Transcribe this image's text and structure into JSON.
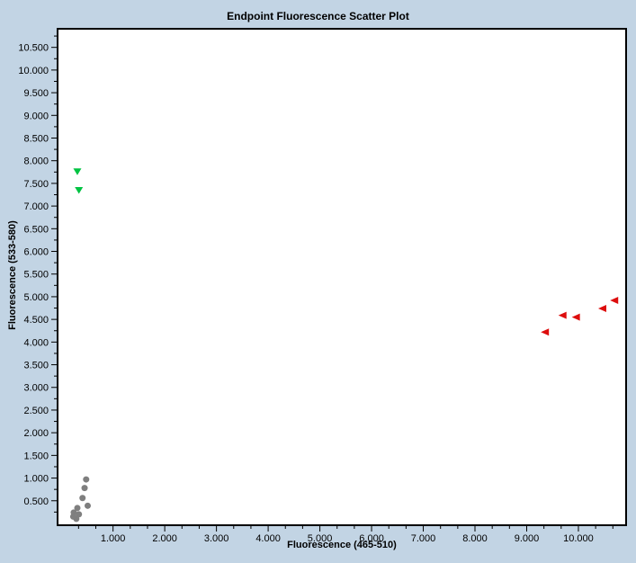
{
  "chart_data": {
    "type": "scatter",
    "title": "Endpoint Fluorescence Scatter Plot",
    "xlabel": "Fluorescence (465-510)",
    "ylabel": "Fluorescence (533-580)",
    "xlim": [
      -0.09,
      10.94
    ],
    "ylim": [
      -0.06,
      10.93
    ],
    "grid": false,
    "legend": "none",
    "background_color": "#c2d4e4",
    "plot_background_color": "#ffffff",
    "border_color": "#000000",
    "x_axis": {
      "minor_divisions": 3,
      "ticks": [
        {
          "value": 1,
          "text": "1.000"
        },
        {
          "value": 2,
          "text": "2.000"
        },
        {
          "value": 3,
          "text": "3.000"
        },
        {
          "value": 4,
          "text": "4.000"
        },
        {
          "value": 5,
          "text": "5.000"
        },
        {
          "value": 6,
          "text": "6.000"
        },
        {
          "value": 7,
          "text": "7.000"
        },
        {
          "value": 8,
          "text": "8.000"
        },
        {
          "value": 9,
          "text": "9.000"
        },
        {
          "value": 10,
          "text": "10.000"
        }
      ]
    },
    "y_axis": {
      "minor_divisions": 2,
      "ticks": [
        {
          "value": 0.5,
          "text": "0.500"
        },
        {
          "value": 1.0,
          "text": "1.000"
        },
        {
          "value": 1.5,
          "text": "1.500"
        },
        {
          "value": 2.0,
          "text": "2.000"
        },
        {
          "value": 2.5,
          "text": "2.500"
        },
        {
          "value": 3.0,
          "text": "3.000"
        },
        {
          "value": 3.5,
          "text": "3.500"
        },
        {
          "value": 4.0,
          "text": "4.000"
        },
        {
          "value": 4.5,
          "text": "4.500"
        },
        {
          "value": 5.0,
          "text": "5.000"
        },
        {
          "value": 5.5,
          "text": "5.500"
        },
        {
          "value": 6.0,
          "text": "6.000"
        },
        {
          "value": 6.5,
          "text": "6.500"
        },
        {
          "value": 7.0,
          "text": "7.000"
        },
        {
          "value": 7.5,
          "text": "7.500"
        },
        {
          "value": 8.0,
          "text": "8.000"
        },
        {
          "value": 8.5,
          "text": "8.500"
        },
        {
          "value": 9.0,
          "text": "9.000"
        },
        {
          "value": 9.5,
          "text": "9.500"
        },
        {
          "value": 10.0,
          "text": "10.000"
        },
        {
          "value": 10.5,
          "text": "10.500"
        }
      ]
    },
    "series": [
      {
        "name": "green-samples",
        "marker": "triangle-down",
        "color": "#00c342",
        "points": [
          [
            0.31,
            7.76
          ],
          [
            0.34,
            7.35
          ]
        ]
      },
      {
        "name": "red-samples",
        "marker": "triangle-left",
        "color": "#dd0d0d",
        "points": [
          [
            9.36,
            4.22
          ],
          [
            9.7,
            4.59
          ],
          [
            9.96,
            4.55
          ],
          [
            10.47,
            4.74
          ],
          [
            10.7,
            4.92
          ]
        ]
      },
      {
        "name": "gray-samples",
        "marker": "circle",
        "color": "#7f7f7f",
        "points": [
          [
            0.48,
            0.97
          ],
          [
            0.45,
            0.78
          ],
          [
            0.41,
            0.56
          ],
          [
            0.51,
            0.39
          ],
          [
            0.31,
            0.34
          ],
          [
            0.24,
            0.24
          ],
          [
            0.34,
            0.2
          ],
          [
            0.29,
            0.1
          ],
          [
            0.23,
            0.15
          ]
        ]
      }
    ]
  }
}
